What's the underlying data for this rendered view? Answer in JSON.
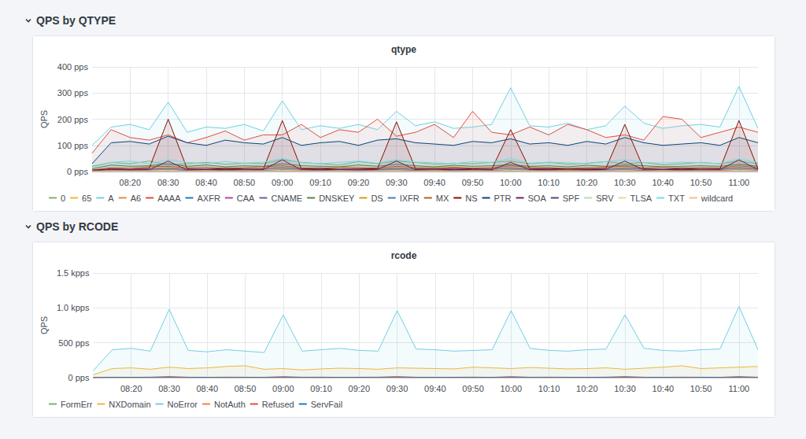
{
  "chart_data": [
    {
      "type": "line",
      "section_title": "QPS by QTYPE",
      "title": "qtype",
      "ylabel": "QPS",
      "x": [
        null,
        null,
        "08:20",
        null,
        "08:30",
        null,
        "08:40",
        null,
        "08:50",
        null,
        "09:00",
        null,
        "09:10",
        null,
        "09:20",
        null,
        "09:30",
        null,
        "09:40",
        null,
        "09:50",
        null,
        "10:00",
        null,
        "10:10",
        null,
        "10:20",
        null,
        "10:30",
        null,
        "10:40",
        null,
        "10:50",
        null,
        "11:00",
        null
      ],
      "ylim": [
        0,
        400
      ],
      "yticks": [
        {
          "value": 0,
          "label": "0 pps"
        },
        {
          "value": 100,
          "label": "100 pps"
        },
        {
          "value": 200,
          "label": "200 pps"
        },
        {
          "value": 300,
          "label": "300 pps"
        },
        {
          "value": 400,
          "label": "400 pps"
        }
      ],
      "grid": true,
      "legend": "bottom",
      "series": [
        {
          "name": "0",
          "color": "#7EB26D",
          "values": [
            20,
            35,
            30,
            40,
            25,
            30,
            35,
            28,
            32,
            30,
            45,
            35,
            30,
            25,
            38,
            30,
            40,
            35,
            28,
            32,
            30,
            35,
            40,
            30,
            35,
            28,
            32,
            38,
            30,
            35,
            25,
            30,
            35,
            30,
            40,
            30
          ]
        },
        {
          "name": "65",
          "color": "#EAB839",
          "values": [
            1,
            5,
            4,
            6,
            8,
            5,
            4,
            6,
            5,
            4,
            8,
            5,
            6,
            4,
            5,
            6,
            7,
            5,
            4,
            6,
            5,
            4,
            8,
            6,
            5,
            4,
            6,
            5,
            7,
            5,
            4,
            6,
            5,
            4,
            8,
            5
          ]
        },
        {
          "name": "A",
          "color": "#6ED0E0",
          "values": [
            100,
            170,
            180,
            160,
            265,
            150,
            170,
            165,
            180,
            155,
            270,
            160,
            175,
            165,
            180,
            160,
            230,
            175,
            190,
            165,
            170,
            180,
            320,
            175,
            170,
            185,
            160,
            175,
            250,
            185,
            165,
            175,
            180,
            170,
            325,
            165
          ]
        },
        {
          "name": "A6",
          "color": "#EF843C",
          "values": [
            0,
            0,
            1,
            0,
            0,
            1,
            0,
            0,
            0,
            1,
            0,
            0,
            1,
            0,
            0,
            0,
            1,
            0,
            0,
            0,
            1,
            0,
            0,
            1,
            0,
            0,
            0,
            1,
            0,
            0,
            1,
            0,
            0,
            0,
            1,
            0
          ]
        },
        {
          "name": "AAAA",
          "color": "#E24D42",
          "values": [
            70,
            160,
            130,
            120,
            140,
            110,
            130,
            155,
            120,
            140,
            140,
            180,
            130,
            160,
            150,
            200,
            135,
            150,
            180,
            130,
            230,
            150,
            140,
            170,
            140,
            180,
            160,
            130,
            140,
            120,
            210,
            200,
            130,
            150,
            170,
            150
          ]
        },
        {
          "name": "AXFR",
          "color": "#1F78C1",
          "values": [
            0,
            0,
            0,
            0,
            0,
            0,
            0,
            0,
            0,
            0,
            0,
            0,
            0,
            0,
            0,
            0,
            0,
            0,
            0,
            0,
            0,
            0,
            0,
            0,
            0,
            0,
            0,
            0,
            0,
            0,
            0,
            0,
            0,
            0,
            0,
            0
          ]
        },
        {
          "name": "CAA",
          "color": "#BA43A9",
          "values": [
            0,
            1,
            1,
            2,
            1,
            1,
            1,
            2,
            1,
            1,
            2,
            1,
            1,
            1,
            2,
            1,
            1,
            1,
            2,
            1,
            1,
            1,
            2,
            1,
            1,
            2,
            1,
            1,
            1,
            2,
            1,
            1,
            2,
            1,
            1,
            1
          ]
        },
        {
          "name": "CNAME",
          "color": "#705DA0",
          "values": [
            2,
            10,
            8,
            9,
            12,
            8,
            10,
            9,
            8,
            11,
            14,
            9,
            8,
            10,
            9,
            8,
            12,
            9,
            10,
            8,
            9,
            11,
            13,
            9,
            8,
            10,
            9,
            8,
            12,
            10,
            9,
            8,
            10,
            9,
            14,
            9
          ]
        },
        {
          "name": "DNSKEY",
          "color": "#508642",
          "values": [
            10,
            25,
            20,
            22,
            30,
            20,
            25,
            18,
            22,
            20,
            30,
            22,
            20,
            18,
            25,
            20,
            28,
            22,
            18,
            24,
            20,
            22,
            26,
            20,
            22,
            18,
            24,
            20,
            25,
            22,
            18,
            20,
            22,
            20,
            28,
            20
          ]
        },
        {
          "name": "DS",
          "color": "#CCA300",
          "values": [
            1,
            3,
            2,
            2,
            4,
            3,
            2,
            3,
            2,
            3,
            4,
            2,
            3,
            2,
            3,
            2,
            4,
            3,
            2,
            3,
            2,
            3,
            4,
            2,
            3,
            2,
            3,
            2,
            4,
            3,
            2,
            3,
            2,
            3,
            4,
            2
          ]
        },
        {
          "name": "IXFR",
          "color": "#447EBC",
          "values": [
            0,
            0,
            0,
            0,
            0,
            0,
            0,
            0,
            0,
            0,
            0,
            0,
            0,
            0,
            0,
            0,
            0,
            0,
            0,
            0,
            0,
            0,
            0,
            0,
            0,
            0,
            0,
            0,
            0,
            0,
            0,
            0,
            0,
            0,
            0,
            0
          ]
        },
        {
          "name": "MX",
          "color": "#C15C17",
          "values": [
            5,
            15,
            12,
            18,
            20,
            14,
            16,
            12,
            15,
            18,
            22,
            14,
            12,
            16,
            15,
            13,
            20,
            15,
            14,
            17,
            13,
            15,
            22,
            16,
            14,
            12,
            15,
            17,
            20,
            14,
            16,
            13,
            15,
            14,
            22,
            15
          ]
        },
        {
          "name": "NS",
          "color": "#890F02",
          "values": [
            5,
            10,
            8,
            12,
            200,
            10,
            8,
            12,
            10,
            9,
            195,
            10,
            12,
            8,
            10,
            11,
            190,
            10,
            9,
            12,
            10,
            8,
            160,
            10,
            12,
            9,
            10,
            11,
            180,
            10,
            8,
            12,
            9,
            10,
            195,
            10
          ]
        },
        {
          "name": "PTR",
          "color": "#0A437C",
          "values": [
            30,
            110,
            115,
            105,
            135,
            110,
            100,
            120,
            110,
            105,
            130,
            100,
            110,
            115,
            100,
            120,
            125,
            110,
            105,
            100,
            115,
            110,
            125,
            105,
            110,
            100,
            115,
            105,
            130,
            110,
            100,
            105,
            110,
            100,
            130,
            110
          ]
        },
        {
          "name": "SOA",
          "color": "#6D1F62",
          "values": [
            2,
            8,
            6,
            7,
            40,
            6,
            7,
            8,
            6,
            7,
            45,
            6,
            8,
            7,
            6,
            8,
            40,
            7,
            6,
            8,
            7,
            6,
            35,
            7,
            8,
            6,
            7,
            8,
            40,
            6,
            7,
            8,
            6,
            7,
            45,
            7
          ]
        },
        {
          "name": "SPF",
          "color": "#584477",
          "values": [
            1,
            4,
            3,
            5,
            6,
            4,
            3,
            5,
            4,
            3,
            6,
            4,
            5,
            3,
            4,
            5,
            6,
            4,
            3,
            5,
            4,
            3,
            6,
            5,
            4,
            3,
            5,
            4,
            6,
            4,
            3,
            5,
            4,
            3,
            6,
            4
          ]
        },
        {
          "name": "SRV",
          "color": "#B7DBAB",
          "values": [
            1,
            3,
            2,
            3,
            5,
            2,
            3,
            2,
            3,
            2,
            5,
            3,
            2,
            3,
            2,
            3,
            4,
            2,
            3,
            2,
            3,
            2,
            5,
            3,
            2,
            3,
            2,
            3,
            4,
            2,
            3,
            2,
            3,
            2,
            5,
            3
          ]
        },
        {
          "name": "TLSA",
          "color": "#F4D598",
          "values": [
            0,
            1,
            0,
            1,
            1,
            0,
            1,
            0,
            1,
            1,
            0,
            1,
            0,
            1,
            1,
            0,
            1,
            0,
            1,
            1,
            0,
            1,
            0,
            1,
            1,
            0,
            1,
            0,
            1,
            1,
            0,
            1,
            0,
            1,
            1,
            0
          ]
        },
        {
          "name": "TXT",
          "color": "#70DBED",
          "values": [
            15,
            35,
            40,
            30,
            45,
            35,
            30,
            38,
            32,
            36,
            50,
            34,
            30,
            35,
            40,
            32,
            45,
            36,
            34,
            30,
            38,
            35,
            50,
            32,
            36,
            34,
            30,
            38,
            45,
            35,
            32,
            36,
            34,
            30,
            48,
            35
          ]
        },
        {
          "name": "wildcard",
          "color": "#F9BA8F",
          "values": [
            0,
            0,
            0,
            1,
            0,
            0,
            0,
            0,
            1,
            0,
            0,
            0,
            0,
            0,
            1,
            0,
            0,
            0,
            0,
            1,
            0,
            0,
            0,
            0,
            0,
            1,
            0,
            0,
            0,
            0,
            1,
            0,
            0,
            0,
            0,
            0
          ]
        }
      ]
    },
    {
      "type": "line",
      "section_title": "QPS by RCODE",
      "title": "rcode",
      "ylabel": "QPS",
      "x": [
        null,
        null,
        "08:20",
        null,
        "08:30",
        null,
        "08:40",
        null,
        "08:50",
        null,
        "09:00",
        null,
        "09:10",
        null,
        "09:20",
        null,
        "09:30",
        null,
        "09:40",
        null,
        "09:50",
        null,
        "10:00",
        null,
        "10:10",
        null,
        "10:20",
        null,
        "10:30",
        null,
        "10:40",
        null,
        "10:50",
        null,
        "11:00",
        null
      ],
      "ylim": [
        0,
        1500
      ],
      "yticks": [
        {
          "value": 0,
          "label": "0 pps"
        },
        {
          "value": 500,
          "label": "500 pps"
        },
        {
          "value": 1000,
          "label": "1.0 kpps"
        },
        {
          "value": 1500,
          "label": "1.5 kpps"
        }
      ],
      "grid": true,
      "legend": "bottom",
      "series": [
        {
          "name": "FormErr",
          "color": "#7EB26D",
          "values": [
            0,
            1,
            0,
            1,
            1,
            0,
            1,
            0,
            1,
            1,
            0,
            1,
            0,
            1,
            1,
            0,
            1,
            0,
            1,
            1,
            0,
            1,
            0,
            1,
            1,
            0,
            1,
            0,
            1,
            1,
            0,
            1,
            0,
            1,
            1,
            0
          ]
        },
        {
          "name": "NXDomain",
          "color": "#EAB839",
          "values": [
            40,
            130,
            140,
            120,
            150,
            130,
            140,
            160,
            170,
            120,
            130,
            110,
            125,
            135,
            130,
            120,
            140,
            135,
            130,
            125,
            150,
            140,
            130,
            145,
            135,
            125,
            130,
            140,
            120,
            135,
            150,
            170,
            130,
            140,
            150,
            160
          ]
        },
        {
          "name": "NoError",
          "color": "#6ED0E0",
          "values": [
            100,
            400,
            420,
            380,
            980,
            390,
            370,
            400,
            380,
            360,
            900,
            380,
            400,
            420,
            390,
            380,
            960,
            410,
            400,
            380,
            390,
            400,
            960,
            420,
            390,
            380,
            400,
            410,
            900,
            420,
            390,
            380,
            400,
            410,
            1020,
            400
          ]
        },
        {
          "name": "NotAuth",
          "color": "#EF843C",
          "values": [
            0,
            0,
            0,
            0,
            0,
            0,
            0,
            0,
            0,
            0,
            0,
            0,
            0,
            0,
            0,
            0,
            0,
            0,
            0,
            0,
            0,
            0,
            0,
            0,
            0,
            0,
            0,
            0,
            0,
            0,
            0,
            0,
            0,
            0,
            0,
            0
          ]
        },
        {
          "name": "Refused",
          "color": "#E24D42",
          "values": [
            1,
            6,
            5,
            7,
            15,
            6,
            5,
            7,
            6,
            5,
            14,
            6,
            7,
            5,
            6,
            7,
            15,
            6,
            5,
            6,
            7,
            5,
            14,
            6,
            7,
            6,
            5,
            7,
            15,
            6,
            5,
            7,
            6,
            5,
            15,
            6
          ]
        },
        {
          "name": "ServFail",
          "color": "#1F78C1",
          "values": [
            0,
            3,
            2,
            3,
            5,
            2,
            3,
            2,
            3,
            2,
            5,
            3,
            2,
            3,
            2,
            3,
            4,
            2,
            3,
            2,
            3,
            2,
            5,
            3,
            2,
            3,
            2,
            3,
            4,
            2,
            3,
            2,
            3,
            2,
            5,
            3
          ]
        }
      ]
    }
  ]
}
